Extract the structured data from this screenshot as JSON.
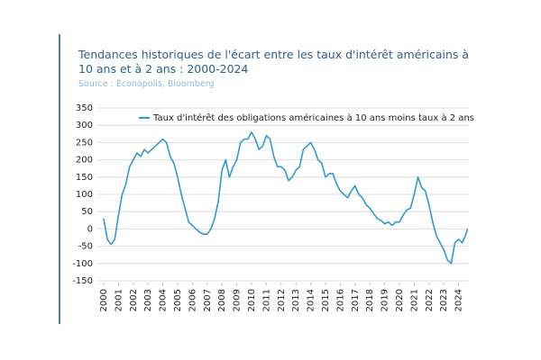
{
  "chart_data": {
    "type": "line",
    "title": "Tendances historiques de l'écart entre les taux d'intérêt américains à 10 ans et à 2 ans : 2000-2024",
    "subtitle": "Source : Econopolis, Bloomberg",
    "x": [
      2000.0,
      2000.25,
      2000.5,
      2000.75,
      2001.0,
      2001.25,
      2001.5,
      2001.75,
      2002.0,
      2002.25,
      2002.5,
      2002.75,
      2003.0,
      2003.25,
      2003.5,
      2003.75,
      2004.0,
      2004.25,
      2004.5,
      2004.75,
      2005.0,
      2005.25,
      2005.5,
      2005.75,
      2006.0,
      2006.25,
      2006.5,
      2006.75,
      2007.0,
      2007.25,
      2007.5,
      2007.75,
      2008.0,
      2008.25,
      2008.5,
      2008.75,
      2009.0,
      2009.25,
      2009.5,
      2009.75,
      2010.0,
      2010.25,
      2010.5,
      2010.75,
      2011.0,
      2011.25,
      2011.5,
      2011.75,
      2012.0,
      2012.25,
      2012.5,
      2012.75,
      2013.0,
      2013.25,
      2013.5,
      2013.75,
      2014.0,
      2014.25,
      2014.5,
      2014.75,
      2015.0,
      2015.25,
      2015.5,
      2015.75,
      2016.0,
      2016.25,
      2016.5,
      2016.75,
      2017.0,
      2017.25,
      2017.5,
      2017.75,
      2018.0,
      2018.25,
      2018.5,
      2018.75,
      2019.0,
      2019.25,
      2019.5,
      2019.75,
      2020.0,
      2020.25,
      2020.5,
      2020.75,
      2021.0,
      2021.25,
      2021.5,
      2021.75,
      2022.0,
      2022.25,
      2022.5,
      2022.75,
      2023.0,
      2023.25,
      2023.5,
      2023.75,
      2024.0,
      2024.25,
      2024.5,
      2024.6
    ],
    "series": [
      {
        "name": "Taux d'intérêt des obligations américaines à 10 ans moins taux à 2 ans",
        "color": "#2e9ad0",
        "values": [
          30,
          -30,
          -45,
          -30,
          40,
          100,
          130,
          180,
          200,
          220,
          210,
          230,
          220,
          230,
          240,
          250,
          260,
          250,
          210,
          190,
          150,
          100,
          60,
          20,
          10,
          0,
          -10,
          -15,
          -15,
          0,
          30,
          80,
          170,
          200,
          150,
          180,
          200,
          250,
          260,
          260,
          280,
          260,
          230,
          240,
          270,
          260,
          210,
          180,
          180,
          170,
          140,
          150,
          170,
          180,
          230,
          240,
          250,
          230,
          200,
          190,
          150,
          160,
          160,
          130,
          110,
          100,
          90,
          110,
          125,
          100,
          90,
          70,
          60,
          45,
          30,
          25,
          15,
          20,
          10,
          20,
          20,
          40,
          55,
          60,
          100,
          150,
          120,
          110,
          70,
          20,
          -20,
          -40,
          -60,
          -90,
          -100,
          -40,
          -30,
          -40,
          -15,
          0
        ]
      }
    ],
    "xlim": [
      2000,
      2025
    ],
    "xticks": [
      2000,
      2001,
      2002,
      2003,
      2004,
      2005,
      2006,
      2007,
      2008,
      2009,
      2010,
      2011,
      2012,
      2013,
      2014,
      2015,
      2016,
      2017,
      2018,
      2019,
      2020,
      2021,
      2022,
      2023,
      2024
    ],
    "ylim": [
      -150,
      350
    ],
    "yticks": [
      -150,
      -100,
      -50,
      0,
      50,
      100,
      150,
      200,
      250,
      300,
      350
    ],
    "grid": true,
    "legend": "top"
  }
}
